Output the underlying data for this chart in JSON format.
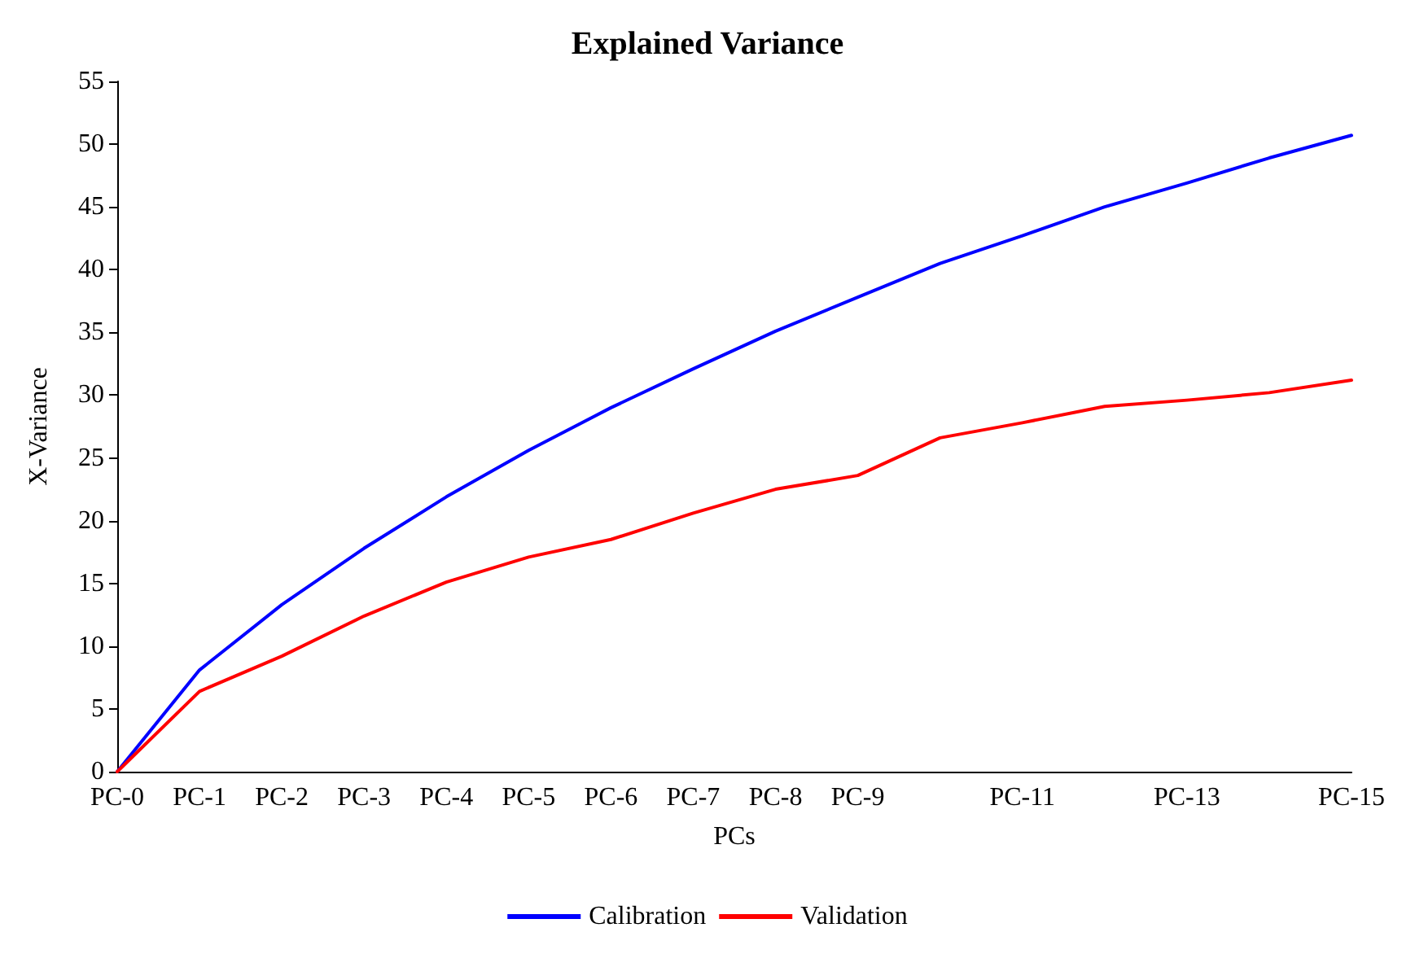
{
  "chart_data": {
    "type": "line",
    "title": "Explained Variance",
    "xlabel": "PCs",
    "ylabel": "X-Variance",
    "categories": [
      "PC-0",
      "PC-1",
      "PC-2",
      "PC-3",
      "PC-4",
      "PC-5",
      "PC-6",
      "PC-7",
      "PC-8",
      "PC-9",
      null,
      "PC-11",
      null,
      "PC-13",
      null,
      "PC-15"
    ],
    "series": [
      {
        "name": "Calibration",
        "color": "#0000ff",
        "values": [
          0,
          8.1,
          13.3,
          17.8,
          21.9,
          25.6,
          29,
          32.1,
          35.1,
          37.8,
          40.5,
          42.7,
          45,
          46.9,
          48.9,
          50.7
        ]
      },
      {
        "name": "Validation",
        "color": "#ff0000",
        "values": [
          0,
          6.4,
          9.2,
          12.4,
          15.1,
          17.1,
          18.5,
          20.6,
          22.5,
          23.6,
          26.6,
          27.8,
          29.1,
          29.6,
          30.2,
          31.2
        ]
      }
    ],
    "ylim": [
      0,
      55
    ],
    "yticks": [
      0,
      5,
      10,
      15,
      20,
      25,
      30,
      35,
      40,
      45,
      50,
      55
    ],
    "grid": false,
    "legend": "bottom",
    "marker": "none",
    "line_style": "solid"
  }
}
